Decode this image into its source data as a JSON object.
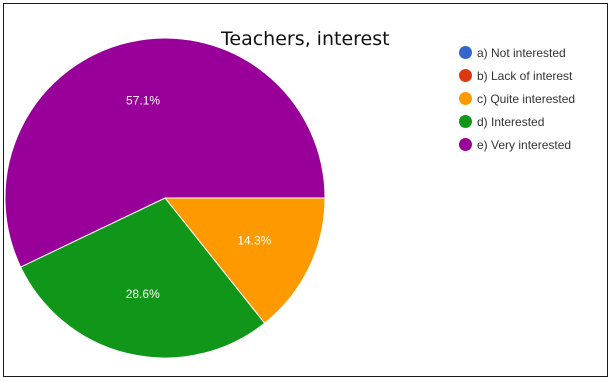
{
  "chart_data": {
    "type": "pie",
    "title": "Teachers‚ interest",
    "categories": [
      "a) Not interested",
      "b) Lack of interest",
      "c) Quite interested",
      "d) Interested",
      "e) Very interested"
    ],
    "values": [
      0,
      0,
      14.3,
      28.6,
      57.1
    ],
    "value_labels": [
      "",
      "",
      "14.3%",
      "28.6%",
      "57.1%"
    ],
    "colors": [
      "#3366cc",
      "#dc3912",
      "#ff9900",
      "#109618",
      "#990099"
    ],
    "legend_position": "right"
  }
}
